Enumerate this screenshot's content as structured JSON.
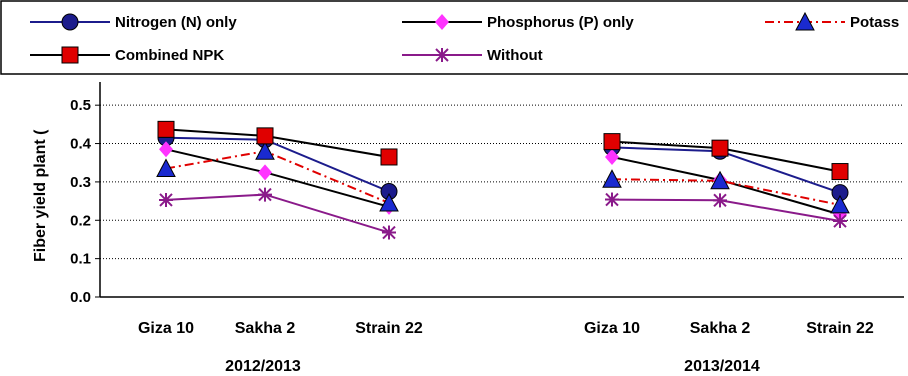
{
  "chart_data": {
    "type": "line",
    "ylabel": "Fiber yield plant (",
    "ylim": [
      0,
      0.55
    ],
    "yticks": [
      "0.0",
      "0.1",
      "0.2",
      "0.3",
      "0.4",
      "0.5"
    ],
    "grid": "horizontal dotted",
    "legend_position": "top",
    "categories": [
      "Giza 10",
      "Sakha 2",
      "Strain 22",
      "Giza 10",
      "Sakha 2",
      "Strain 22"
    ],
    "groups": [
      {
        "label": "2012/2013",
        "categories": [
          "Giza 10",
          "Sakha 2",
          "Strain 22"
        ]
      },
      {
        "label": "2013/2014",
        "categories": [
          "Giza 10",
          "Sakha 2",
          "Strain 22"
        ]
      }
    ],
    "series": [
      {
        "name": "Nitrogen (N) only",
        "color": "#1c1c8c",
        "marker": "circle",
        "line": "solid",
        "values": [
          0.415,
          0.41,
          0.275,
          0.39,
          0.38,
          0.272
        ]
      },
      {
        "name": "Phosphorus (P) only",
        "color": "#ff33ff",
        "marker": "diamond",
        "line": "solid",
        "line_color": "#000000",
        "values": [
          0.385,
          0.325,
          0.235,
          0.365,
          0.305,
          0.215
        ]
      },
      {
        "name": "Potass",
        "color": "#1a2ad0",
        "marker": "triangle",
        "line": "dash-dot",
        "line_color": "#e00000",
        "values": [
          0.335,
          0.38,
          0.245,
          0.307,
          0.303,
          0.24
        ]
      },
      {
        "name": "Combined NPK",
        "color": "#e00000",
        "marker": "square",
        "line": "solid",
        "line_color": "#000000",
        "values": [
          0.437,
          0.42,
          0.365,
          0.405,
          0.388,
          0.327
        ]
      },
      {
        "name": "Without",
        "color": "#8a1a8a",
        "marker": "star",
        "line": "solid",
        "values": [
          0.253,
          0.267,
          0.168,
          0.254,
          0.252,
          0.198
        ]
      }
    ]
  }
}
